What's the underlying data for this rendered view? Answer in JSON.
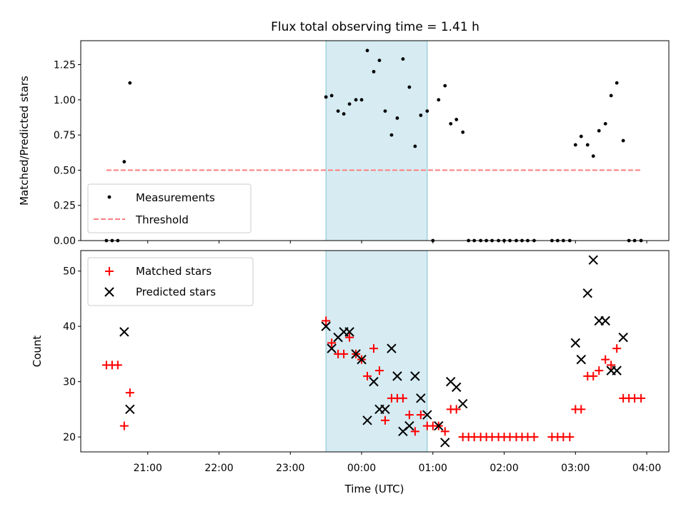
{
  "chart_data": [
    {
      "type": "scatter",
      "title": "Flux total observing time = 1.41 h",
      "ylabel": "Matched/Predicted stars",
      "xlabel": "",
      "ylim": [
        0,
        1.42
      ],
      "yticks": [
        "0.00",
        "0.25",
        "0.50",
        "0.75",
        "1.00",
        "1.25"
      ],
      "ytick_values": [
        0,
        0.25,
        0.5,
        0.75,
        1.0,
        1.25
      ],
      "xlim_hours": [
        -3.94,
        4.31
      ],
      "highlight_span_hours": [
        -0.5,
        0.92
      ],
      "legend_position": "lower-left",
      "series": [
        {
          "name": "Measurements",
          "marker": "dot",
          "color": "#000000",
          "x": [
            -3.58,
            -3.5,
            -3.42,
            -3.33,
            -3.25,
            -0.5,
            -0.42,
            -0.33,
            -0.25,
            -0.17,
            -0.08,
            0.0,
            0.08,
            0.17,
            0.25,
            0.33,
            0.42,
            0.5,
            0.58,
            0.67,
            0.75,
            0.83,
            0.92,
            1.0,
            1.08,
            1.17,
            1.25,
            1.33,
            1.42,
            1.5,
            1.58,
            1.67,
            1.75,
            1.83,
            1.92,
            2.0,
            2.08,
            2.17,
            2.25,
            2.33,
            2.42,
            2.67,
            2.75,
            2.83,
            2.92,
            3.0,
            3.08,
            3.17,
            3.25,
            3.33,
            3.42,
            3.5,
            3.58,
            3.67,
            3.75,
            3.83,
            3.92
          ],
          "y": [
            0,
            0,
            0,
            0.56,
            1.12,
            1.02,
            1.03,
            0.92,
            0.9,
            0.97,
            1.0,
            1.0,
            1.35,
            1.2,
            1.28,
            0.92,
            0.75,
            0.87,
            1.29,
            1.09,
            0.67,
            0.89,
            0.92,
            0,
            1.0,
            1.1,
            0.83,
            0.86,
            0.77,
            0,
            0,
            0,
            0,
            0,
            0,
            0,
            0,
            0,
            0,
            0,
            0,
            0,
            0,
            0,
            0,
            0.68,
            0.74,
            0.68,
            0.6,
            0.78,
            0.83,
            1.03,
            1.12,
            0.71,
            0,
            0,
            0
          ]
        },
        {
          "name": "Threshold",
          "marker": "dashed-line",
          "color": "#ff7f7f",
          "x": [
            -3.58,
            3.92
          ],
          "y": [
            0.5,
            0.5
          ]
        }
      ]
    },
    {
      "type": "scatter",
      "title": "",
      "ylabel": "Count",
      "xlabel": "Time (UTC)",
      "ylim": [
        17.3,
        53.7
      ],
      "yticks": [
        "20",
        "30",
        "40",
        "50"
      ],
      "ytick_values": [
        20,
        30,
        40,
        50
      ],
      "xlim_hours": [
        -3.94,
        4.31
      ],
      "xticks": [
        "21:00",
        "22:00",
        "23:00",
        "00:00",
        "01:00",
        "02:00",
        "03:00",
        "04:00"
      ],
      "xtick_values": [
        -3,
        -2,
        -1,
        0,
        1,
        2,
        3,
        4
      ],
      "highlight_span_hours": [
        -0.5,
        0.92
      ],
      "legend_position": "upper-left",
      "series": [
        {
          "name": "Matched stars",
          "marker": "plus",
          "color": "#ff0000",
          "x": [
            -3.58,
            -3.5,
            -3.42,
            -3.33,
            -3.25,
            -0.5,
            -0.42,
            -0.33,
            -0.25,
            -0.17,
            -0.08,
            0.0,
            0.08,
            0.17,
            0.25,
            0.33,
            0.42,
            0.5,
            0.58,
            0.67,
            0.75,
            0.83,
            0.92,
            1.0,
            1.08,
            1.17,
            1.25,
            1.33,
            1.42,
            1.5,
            1.58,
            1.67,
            1.75,
            1.83,
            1.92,
            2.0,
            2.08,
            2.17,
            2.25,
            2.33,
            2.42,
            2.67,
            2.75,
            2.83,
            2.92,
            3.0,
            3.08,
            3.17,
            3.25,
            3.33,
            3.42,
            3.5,
            3.58,
            3.67,
            3.75,
            3.83,
            3.92
          ],
          "y": [
            33,
            33,
            33,
            22,
            28,
            41,
            37,
            35,
            35,
            38,
            35,
            34,
            31,
            36,
            32,
            23,
            27,
            27,
            27,
            24,
            21,
            24,
            22,
            22,
            22,
            21,
            25,
            25,
            20,
            20,
            20,
            20,
            20,
            20,
            20,
            20,
            20,
            20,
            20,
            20,
            20,
            20,
            20,
            20,
            20,
            25,
            25,
            31,
            31,
            32,
            34,
            33,
            36,
            27,
            27,
            27,
            27
          ]
        },
        {
          "name": "Predicted stars",
          "marker": "x",
          "color": "#000000",
          "x": [
            -3.33,
            -3.25,
            -0.5,
            -0.42,
            -0.33,
            -0.25,
            -0.17,
            -0.08,
            0.0,
            0.08,
            0.17,
            0.25,
            0.33,
            0.42,
            0.5,
            0.58,
            0.67,
            0.75,
            0.83,
            0.92,
            1.08,
            1.17,
            1.25,
            1.33,
            1.42,
            3.0,
            3.08,
            3.17,
            3.25,
            3.33,
            3.42,
            3.5,
            3.58,
            3.67
          ],
          "y": [
            39,
            25,
            40,
            36,
            38,
            39,
            39,
            35,
            34,
            23,
            30,
            25,
            25,
            36,
            31,
            21,
            22,
            31,
            27,
            24,
            22,
            19,
            30,
            29,
            26,
            37,
            34,
            46,
            52,
            41,
            41,
            32,
            32,
            38
          ]
        }
      ]
    }
  ]
}
